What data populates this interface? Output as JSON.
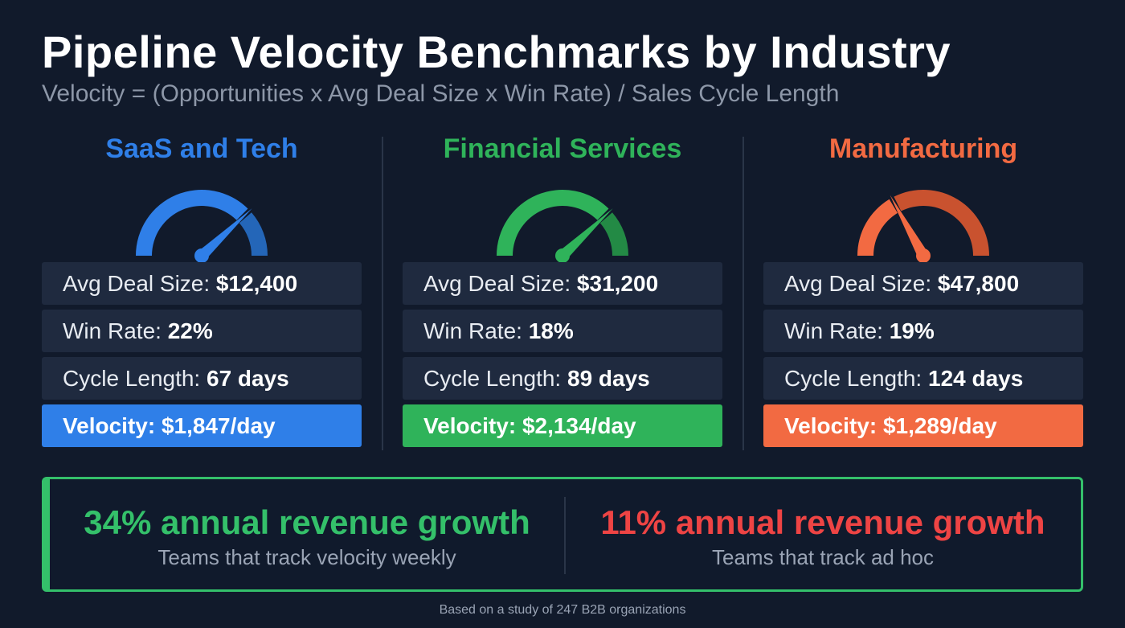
{
  "title": "Pipeline Velocity Benchmarks by Industry",
  "subtitle": "Velocity = (Opportunities x Avg Deal Size x Win Rate) / Sales Cycle Length",
  "industries": [
    {
      "name": "SaaS and Tech",
      "color": "#2f7fe8",
      "dark": "#2466b8",
      "gauge_fraction": 0.76,
      "deal_label": "Avg Deal Size: ",
      "deal": "$12,400",
      "win_label": "Win Rate: ",
      "win": "22%",
      "cycle_label": "Cycle Length: ",
      "cycle": "67 days",
      "velocity": "Velocity: $1,847/day"
    },
    {
      "name": "Financial Services",
      "color": "#2fb35a",
      "dark": "#238a45",
      "gauge_fraction": 0.76,
      "deal_label": "Avg Deal Size: ",
      "deal": "$31,200",
      "win_label": "Win Rate: ",
      "win": "18%",
      "cycle_label": "Cycle Length: ",
      "cycle": "89 days",
      "velocity": "Velocity: $2,134/day"
    },
    {
      "name": "Manufacturing",
      "color": "#f26a42",
      "dark": "#c9522f",
      "gauge_fraction": 0.34,
      "deal_label": "Avg Deal Size: ",
      "deal": "$47,800",
      "win_label": "Win Rate: ",
      "win": "19%",
      "cycle_label": "Cycle Length: ",
      "cycle": "124 days",
      "velocity": "Velocity: $1,289/day"
    }
  ],
  "banner": {
    "left": {
      "headline": "34% annual revenue growth",
      "sub": "Teams that track velocity weekly",
      "color": "#34c06a"
    },
    "right": {
      "headline": "11% annual revenue growth",
      "sub": "Teams that track ad hoc",
      "color": "#ee4444"
    }
  },
  "footnote": "Based on a study of 247 B2B organizations"
}
